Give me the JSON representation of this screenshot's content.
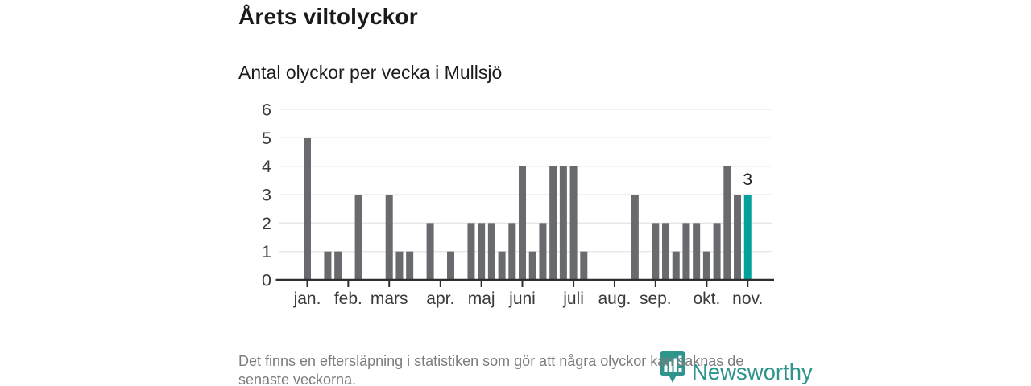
{
  "header": {
    "title": "Årets viltolyckor",
    "subtitle": "Antal olyckor per vecka i Mullsjö"
  },
  "chart_data": {
    "type": "bar",
    "title": "Årets viltolyckor",
    "subtitle": "Antal olyckor per vecka i Mullsjö",
    "ylabel": "",
    "xlabel": "",
    "ylim": [
      0,
      6
    ],
    "y_ticks": [
      0,
      1,
      2,
      3,
      4,
      5,
      6
    ],
    "grid": true,
    "weekly_values": [
      5,
      0,
      1,
      1,
      0,
      3,
      0,
      0,
      3,
      1,
      1,
      0,
      2,
      0,
      1,
      0,
      2,
      2,
      2,
      1,
      2,
      4,
      1,
      2,
      4,
      4,
      4,
      1,
      0,
      0,
      0,
      0,
      3,
      0,
      2,
      2,
      1,
      2,
      2,
      1,
      2,
      4,
      3,
      3
    ],
    "month_ticks": [
      {
        "label": "jan.",
        "week": 0
      },
      {
        "label": "feb.",
        "week": 4
      },
      {
        "label": "mars",
        "week": 8
      },
      {
        "label": "apr.",
        "week": 13
      },
      {
        "label": "maj",
        "week": 17
      },
      {
        "label": "juni",
        "week": 21
      },
      {
        "label": "juli",
        "week": 26
      },
      {
        "label": "aug.",
        "week": 30
      },
      {
        "label": "sep.",
        "week": 34
      },
      {
        "label": "okt.",
        "week": 39
      },
      {
        "label": "nov.",
        "week": 43
      }
    ],
    "highlight_week": 43,
    "annotation": {
      "week": 43,
      "text": "3"
    },
    "bar_color": "#696a6e",
    "highlight_color": "#00a29b",
    "grid_color": "#e6e6e6",
    "axis_color": "#2d2d2d"
  },
  "footer": {
    "lines": [
      "Det finns en eftersläpning i statistiken som gör att några olyckor kan saknas de",
      "senaste veckorna."
    ]
  },
  "logo": {
    "text": "Newsworthy",
    "color": "#2f948c"
  }
}
